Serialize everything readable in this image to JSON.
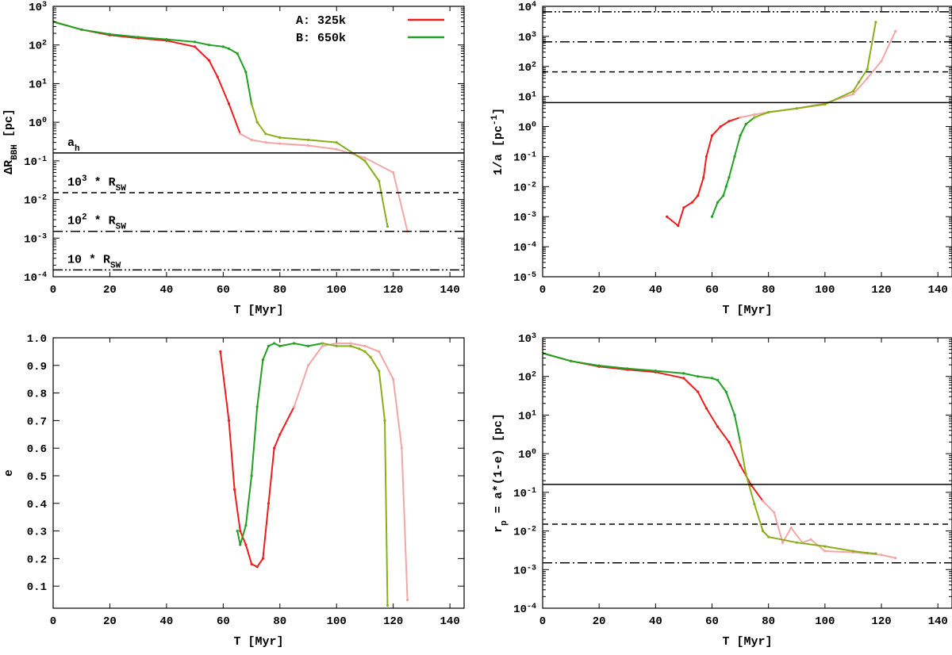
{
  "chart_data": [
    {
      "type": "line",
      "panel": "top-left",
      "xlabel_parts": [
        "T [Myr]"
      ],
      "ylabel_parts": [
        "ΔR",
        "BBH",
        " [pc]"
      ],
      "xlim": [
        0,
        145
      ],
      "ylim": [
        0.0001,
        1000
      ],
      "ylog": true,
      "xticks": [
        0,
        20,
        40,
        60,
        80,
        100,
        120,
        140
      ],
      "yticks_exp": [
        -4,
        -3,
        -2,
        -1,
        0,
        1,
        2,
        3
      ],
      "legend": {
        "placement": "top-right",
        "entries": [
          {
            "label": "A: 325k",
            "color": "#ee1c1c"
          },
          {
            "label": "B: 650k",
            "color": "#22a022"
          }
        ]
      },
      "reference_lines": [
        {
          "name": "a_h",
          "y": 0.16,
          "style": "solid",
          "label_parts": [
            "a",
            "h",
            ""
          ]
        },
        {
          "name": "1e3 Rsw",
          "y": 0.015,
          "style": "dashed",
          "label_parts": [
            "10",
            "3",
            " * R",
            "SW"
          ]
        },
        {
          "name": "1e2 Rsw",
          "y": 0.0015,
          "style": "dashdot",
          "label_parts": [
            "10",
            "2",
            " * R",
            "SW"
          ]
        },
        {
          "name": "10 Rsw",
          "y": 0.00015,
          "style": "dashdotdot",
          "label_parts": [
            "10 * R",
            "SW"
          ]
        }
      ],
      "series": [
        {
          "name": "A: 325k",
          "color": "#ee1c1c",
          "post_color": "#f4a6a6",
          "x": [
            0,
            10,
            20,
            30,
            40,
            50,
            55,
            58,
            62,
            66,
            70,
            75,
            80,
            90,
            100,
            110,
            120,
            125
          ],
          "y": [
            400,
            250,
            180,
            150,
            130,
            90,
            40,
            15,
            3,
            0.5,
            0.35,
            0.3,
            0.28,
            0.25,
            0.2,
            0.12,
            0.05,
            0.0015
          ]
        },
        {
          "name": "B: 650k",
          "color": "#22a022",
          "post_color": "#8aae1a",
          "x": [
            0,
            10,
            20,
            30,
            40,
            50,
            55,
            60,
            62,
            65,
            68,
            70,
            72,
            75,
            80,
            90,
            100,
            110,
            115,
            118
          ],
          "y": [
            400,
            250,
            190,
            160,
            140,
            120,
            100,
            90,
            80,
            60,
            20,
            3,
            1,
            0.5,
            0.4,
            0.35,
            0.3,
            0.1,
            0.03,
            0.002
          ]
        }
      ]
    },
    {
      "type": "line",
      "panel": "top-right",
      "xlabel_parts": [
        "T [Myr]"
      ],
      "ylabel_parts": [
        "1/a [pc",
        "-1",
        "]"
      ],
      "xlim": [
        0,
        145
      ],
      "ylim": [
        1e-05,
        10000
      ],
      "ylog": true,
      "xticks": [
        0,
        20,
        40,
        60,
        80,
        100,
        120,
        140
      ],
      "yticks_exp": [
        -5,
        -4,
        -3,
        -2,
        -1,
        0,
        1,
        2,
        3,
        4
      ],
      "reference_lines": [
        {
          "y": 6.25,
          "style": "solid"
        },
        {
          "y": 66,
          "style": "dashed"
        },
        {
          "y": 660,
          "style": "dashdot"
        },
        {
          "y": 6600,
          "style": "dashdotdot"
        }
      ],
      "series": [
        {
          "name": "A: 325k",
          "color": "#ee1c1c",
          "post_color": "#f4a6a6",
          "x": [
            44,
            48,
            50,
            53,
            55,
            57,
            58,
            60,
            63,
            66,
            70,
            75,
            80,
            90,
            100,
            110,
            115,
            120,
            125
          ],
          "y": [
            0.001,
            0.0005,
            0.002,
            0.003,
            0.005,
            0.02,
            0.1,
            0.5,
            1.0,
            1.5,
            2.0,
            2.5,
            3.0,
            4.0,
            6.0,
            12,
            40,
            150,
            1500
          ]
        },
        {
          "name": "B: 650k",
          "color": "#22a022",
          "post_color": "#8aae1a",
          "late_color": "#d3dd6a",
          "x": [
            60,
            62,
            64,
            65,
            66,
            68,
            70,
            72,
            75,
            80,
            90,
            100,
            110,
            112,
            115,
            118
          ],
          "y": [
            0.001,
            0.003,
            0.005,
            0.01,
            0.02,
            0.1,
            0.5,
            1.2,
            2.0,
            3.0,
            4.0,
            5.5,
            15,
            30,
            80,
            3000
          ]
        }
      ]
    },
    {
      "type": "line",
      "panel": "bottom-left",
      "xlabel_parts": [
        "T [Myr]"
      ],
      "ylabel_parts": [
        "e"
      ],
      "xlim": [
        0,
        145
      ],
      "ylim": [
        0.02,
        1.0
      ],
      "ylog": false,
      "xticks": [
        0,
        20,
        40,
        60,
        80,
        100,
        120,
        140
      ],
      "yticks": [
        0.1,
        0.2,
        0.3,
        0.4,
        0.5,
        0.6,
        0.7,
        0.8,
        0.9,
        1.0
      ],
      "ytick_labels": [
        "0.1",
        "0.2",
        "0.3",
        "0.4",
        "0.5",
        "0.6",
        "0.7",
        "0.8",
        "0.9",
        "1.0"
      ],
      "series": [
        {
          "name": "A: 325k",
          "color": "#ee1c1c",
          "post_color": "#f4a6a6",
          "x": [
            59,
            62,
            64,
            66,
            68,
            70,
            72,
            74,
            76,
            78,
            80,
            85,
            90,
            95,
            100,
            105,
            110,
            115,
            120,
            123,
            125
          ],
          "y": [
            0.95,
            0.7,
            0.45,
            0.3,
            0.25,
            0.18,
            0.17,
            0.2,
            0.4,
            0.6,
            0.65,
            0.75,
            0.9,
            0.97,
            0.98,
            0.98,
            0.97,
            0.95,
            0.85,
            0.6,
            0.05
          ]
        },
        {
          "name": "B: 650k",
          "color": "#22a022",
          "post_color": "#8aae1a",
          "late_color": "#d3dd6a",
          "x": [
            65,
            66,
            68,
            70,
            72,
            74,
            76,
            78,
            80,
            85,
            90,
            95,
            100,
            105,
            108,
            110,
            112,
            115,
            117,
            118
          ],
          "y": [
            0.3,
            0.25,
            0.32,
            0.5,
            0.75,
            0.92,
            0.97,
            0.98,
            0.97,
            0.98,
            0.97,
            0.98,
            0.97,
            0.97,
            0.96,
            0.95,
            0.93,
            0.88,
            0.7,
            0.03
          ]
        }
      ]
    },
    {
      "type": "line",
      "panel": "bottom-right",
      "xlabel_parts": [
        "T [Myr]"
      ],
      "ylabel_parts": [
        "r",
        "p",
        " = a*(1-e) [pc]"
      ],
      "xlim": [
        0,
        145
      ],
      "ylim": [
        0.0001,
        1000
      ],
      "ylog": true,
      "xticks": [
        0,
        20,
        40,
        60,
        80,
        100,
        120,
        140
      ],
      "yticks_exp": [
        -4,
        -3,
        -2,
        -1,
        0,
        1,
        2,
        3
      ],
      "reference_lines": [
        {
          "y": 0.16,
          "style": "solid"
        },
        {
          "y": 0.015,
          "style": "dashed"
        },
        {
          "y": 0.0015,
          "style": "dashdot"
        }
      ],
      "series": [
        {
          "name": "A: 325k",
          "color": "#ee1c1c",
          "post_color": "#f4a6a6",
          "x": [
            0,
            10,
            20,
            30,
            40,
            50,
            55,
            58,
            62,
            66,
            70,
            74,
            78,
            82,
            85,
            88,
            92,
            95,
            100,
            110,
            120,
            125
          ],
          "y": [
            400,
            250,
            180,
            150,
            130,
            90,
            40,
            15,
            5,
            2,
            0.5,
            0.15,
            0.06,
            0.03,
            0.005,
            0.012,
            0.005,
            0.006,
            0.003,
            0.0028,
            0.0024,
            0.002
          ]
        },
        {
          "name": "B: 650k",
          "color": "#22a022",
          "post_color": "#8aae1a",
          "late_color": "#d3dd6a",
          "x": [
            0,
            10,
            20,
            30,
            40,
            50,
            55,
            60,
            62,
            65,
            68,
            70,
            72,
            75,
            78,
            80,
            90,
            100,
            110,
            115,
            118
          ],
          "y": [
            400,
            250,
            190,
            160,
            140,
            120,
            100,
            90,
            80,
            40,
            10,
            2,
            0.3,
            0.05,
            0.01,
            0.007,
            0.005,
            0.004,
            0.003,
            0.0027,
            0.0026
          ]
        }
      ]
    }
  ]
}
